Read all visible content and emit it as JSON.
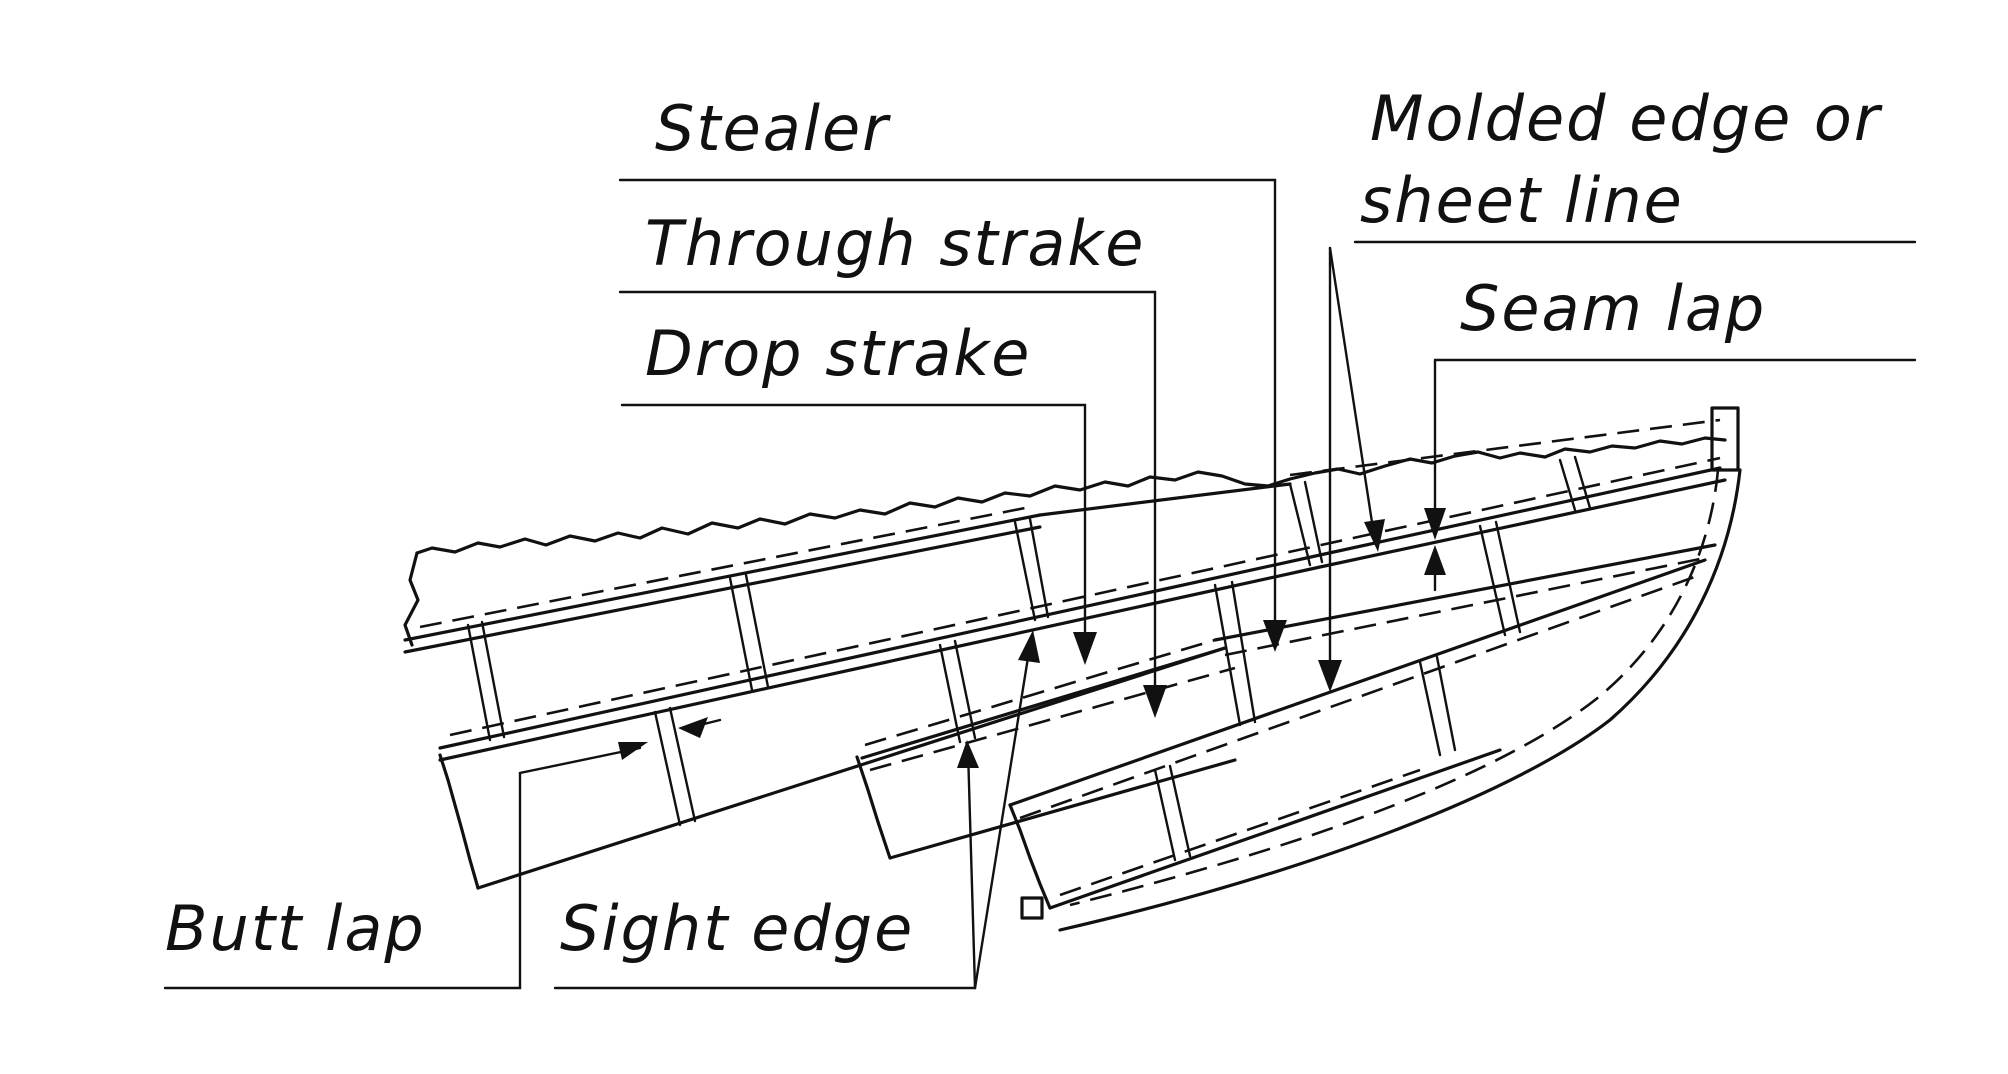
{
  "labels": {
    "stealer": "Stealer",
    "through_strake": "Through strake",
    "drop_strake": "Drop strake",
    "molded_edge_line1": "Molded edge or",
    "molded_edge_line2": "sheet line",
    "seam_lap": "Seam lap",
    "butt_lap": "Butt lap",
    "sight_edge": "Sight edge"
  },
  "colors": {
    "ink": "#111111",
    "paper": "#ffffff"
  }
}
